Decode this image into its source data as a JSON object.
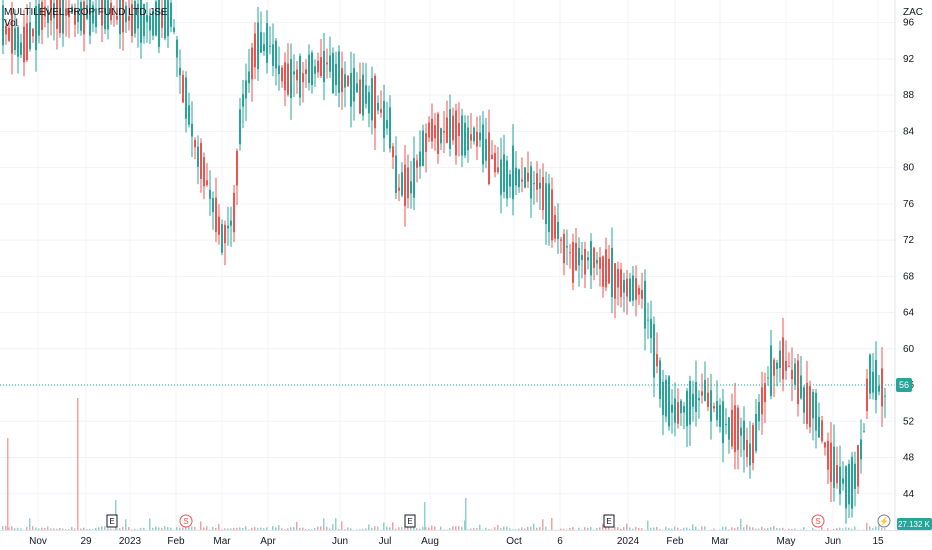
{
  "legend": {
    "symbol_title": "MULTILEVEL PROP FUND LTD JSE",
    "vol_label": "Vol"
  },
  "currency": "ZAC",
  "last_price_label": "56",
  "volume_label": "27.132 K",
  "colors": {
    "up": "#26a69a",
    "down": "#ef5350",
    "grid": "#f0f3fa",
    "axis": "#e0e3eb",
    "text": "#131722",
    "price_line": "#26a69a"
  },
  "chart_data": {
    "type": "candlestick",
    "y_ticks": [
      44,
      48,
      52,
      56,
      60,
      64,
      68,
      72,
      76,
      80,
      84,
      88,
      92,
      96
    ],
    "ylim": [
      40,
      98.5
    ],
    "x_ticks": [
      "Nov",
      "29",
      "2023",
      "Feb",
      "Mar",
      "Apr",
      "Jun",
      "Jul",
      "Aug",
      "Oct",
      "6",
      "2024",
      "Feb",
      "Mar",
      "May",
      "Jun",
      "15"
    ],
    "last_price": 56,
    "volume": 27132,
    "events": [
      {
        "type": "earnings",
        "label": "E"
      },
      {
        "type": "dividend",
        "label": "S"
      },
      {
        "type": "earnings",
        "label": "E"
      },
      {
        "type": "earnings",
        "label": "E"
      },
      {
        "type": "dividend",
        "label": "S"
      },
      {
        "type": "split",
        "label": "⚡"
      }
    ],
    "price_path": [
      [
        0,
        96
      ],
      [
        20,
        93
      ],
      [
        45,
        97
      ],
      [
        90,
        97
      ],
      [
        120,
        97
      ],
      [
        150,
        96
      ],
      [
        170,
        97
      ],
      [
        180,
        90
      ],
      [
        195,
        82
      ],
      [
        210,
        77
      ],
      [
        222,
        72
      ],
      [
        232,
        74
      ],
      [
        240,
        86
      ],
      [
        255,
        93
      ],
      [
        268,
        94
      ],
      [
        282,
        90
      ],
      [
        296,
        90
      ],
      [
        312,
        91
      ],
      [
        330,
        91
      ],
      [
        350,
        89
      ],
      [
        372,
        87
      ],
      [
        388,
        85
      ],
      [
        396,
        78
      ],
      [
        410,
        78
      ],
      [
        428,
        84
      ],
      [
        450,
        84
      ],
      [
        480,
        83
      ],
      [
        500,
        79
      ],
      [
        520,
        79
      ],
      [
        540,
        78
      ],
      [
        555,
        73
      ],
      [
        570,
        70
      ],
      [
        590,
        70
      ],
      [
        610,
        68
      ],
      [
        625,
        67
      ],
      [
        640,
        66
      ],
      [
        650,
        62
      ],
      [
        662,
        55
      ],
      [
        672,
        53
      ],
      [
        690,
        54
      ],
      [
        705,
        55
      ],
      [
        722,
        52
      ],
      [
        740,
        51
      ],
      [
        750,
        48
      ],
      [
        760,
        54
      ],
      [
        770,
        58
      ],
      [
        782,
        59
      ],
      [
        795,
        57
      ],
      [
        805,
        54
      ],
      [
        815,
        53
      ],
      [
        825,
        49
      ],
      [
        835,
        46
      ],
      [
        845,
        45
      ],
      [
        855,
        46
      ],
      [
        862,
        50
      ],
      [
        868,
        57
      ],
      [
        876,
        56
      ],
      [
        884,
        55
      ]
    ]
  }
}
